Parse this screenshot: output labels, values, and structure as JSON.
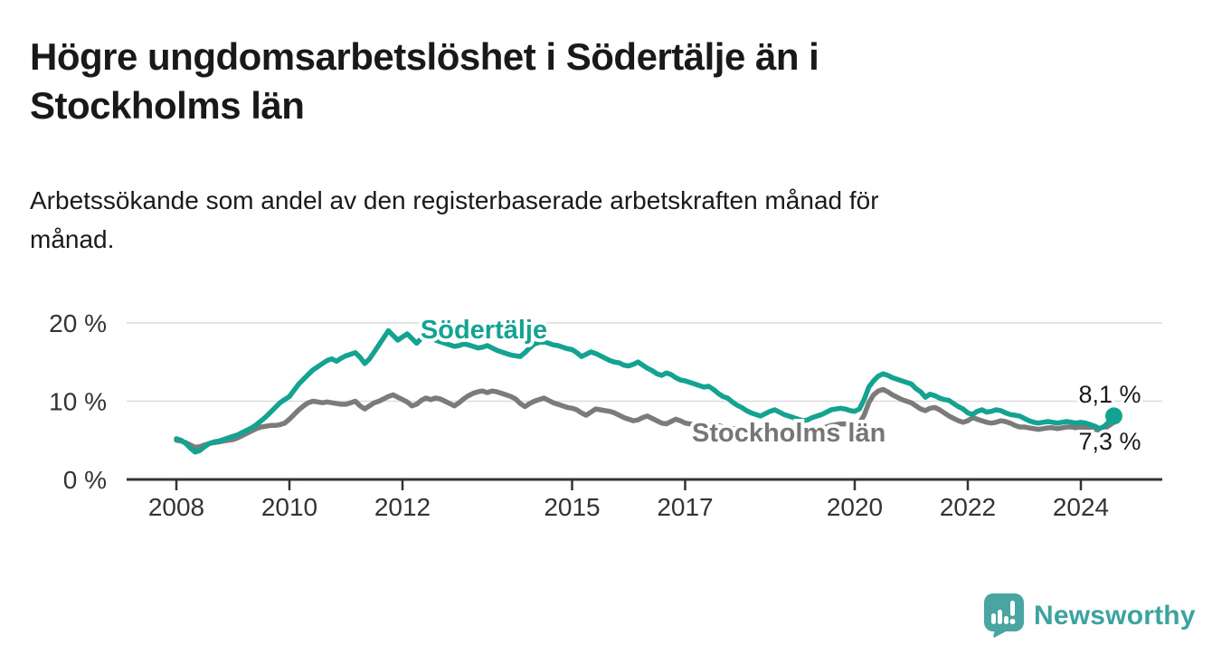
{
  "title": {
    "line1": "Högre ungdomsarbetslöshet i Södertälje än i",
    "line2": "Stockholms län"
  },
  "subtitle": {
    "line1": "Arbetssökande som andel av den registerbaserade arbetskraften månad för",
    "line2": "månad."
  },
  "chart_data": {
    "type": "line",
    "x_start_year": 2008,
    "x_step_months": 1,
    "x_end_label": "aug 2024",
    "ylim": [
      0,
      21.5
    ],
    "grid": "horizontal-only",
    "y_ticks": [
      {
        "value": 0,
        "label": "0 %"
      },
      {
        "value": 10,
        "label": "10 %"
      },
      {
        "value": 20,
        "label": "20 %"
      }
    ],
    "x_ticks": [
      {
        "year": 2008,
        "label": "2008"
      },
      {
        "year": 2010,
        "label": "2010"
      },
      {
        "year": 2012,
        "label": "2012"
      },
      {
        "year": 2015,
        "label": "2015"
      },
      {
        "year": 2017,
        "label": "2017"
      },
      {
        "year": 2020,
        "label": "2020"
      },
      {
        "year": 2022,
        "label": "2022"
      },
      {
        "year": 2024,
        "label": "2024"
      }
    ],
    "series": [
      {
        "name": "Stockholms län",
        "color": "#7B7B7B",
        "end_label": "7,3 %",
        "end_value": 7.3,
        "end_dot": false,
        "values": [
          5.0,
          4.9,
          4.7,
          4.4,
          4.1,
          4.2,
          4.4,
          4.6,
          4.7,
          4.8,
          4.9,
          5.0,
          5.1,
          5.3,
          5.6,
          5.9,
          6.2,
          6.5,
          6.7,
          6.8,
          6.9,
          6.9,
          7.0,
          7.2,
          7.7,
          8.3,
          8.9,
          9.4,
          9.8,
          10.0,
          9.9,
          9.8,
          9.9,
          9.8,
          9.7,
          9.6,
          9.6,
          9.8,
          10.0,
          9.4,
          9.0,
          9.4,
          9.8,
          10.0,
          10.3,
          10.6,
          10.8,
          10.5,
          10.2,
          9.9,
          9.4,
          9.6,
          10.1,
          10.4,
          10.2,
          10.4,
          10.3,
          10.0,
          9.7,
          9.4,
          9.8,
          10.3,
          10.7,
          11.0,
          11.2,
          11.3,
          11.1,
          11.3,
          11.2,
          11.0,
          10.8,
          10.6,
          10.3,
          9.7,
          9.3,
          9.7,
          10.0,
          10.2,
          10.4,
          10.1,
          9.8,
          9.6,
          9.4,
          9.2,
          9.1,
          8.9,
          8.5,
          8.2,
          8.6,
          9.0,
          8.9,
          8.8,
          8.7,
          8.5,
          8.2,
          7.9,
          7.7,
          7.5,
          7.6,
          7.9,
          8.1,
          7.8,
          7.5,
          7.2,
          7.1,
          7.4,
          7.7,
          7.5,
          7.2,
          7.1,
          7.0,
          6.9,
          6.9,
          7.0,
          7.1,
          6.9,
          6.7,
          6.6,
          6.5,
          6.5,
          6.4,
          6.3,
          6.2,
          6.1,
          6.0,
          6.2,
          6.4,
          6.5,
          6.4,
          6.2,
          6.1,
          6.0,
          6.0,
          5.9,
          6.0,
          6.2,
          6.3,
          6.5,
          6.7,
          6.9,
          7.0,
          7.1,
          7.1,
          7.0,
          7.0,
          7.2,
          8.2,
          9.8,
          10.8,
          11.3,
          11.5,
          11.2,
          10.8,
          10.5,
          10.2,
          10.0,
          9.8,
          9.4,
          9.0,
          8.8,
          9.1,
          9.2,
          8.9,
          8.5,
          8.1,
          7.8,
          7.5,
          7.3,
          7.5,
          7.9,
          7.7,
          7.5,
          7.3,
          7.2,
          7.3,
          7.5,
          7.4,
          7.2,
          6.9,
          6.7,
          6.7,
          6.6,
          6.5,
          6.4,
          6.5,
          6.6,
          6.6,
          6.5,
          6.6,
          6.7,
          6.7,
          6.6,
          6.7,
          6.6,
          6.5,
          6.4,
          6.3,
          6.5,
          6.9,
          7.3
        ]
      },
      {
        "name": "Södertälje",
        "color": "#14A291",
        "end_label": "8,1 %",
        "end_value": 8.1,
        "end_dot": true,
        "values": [
          5.2,
          5.0,
          4.6,
          4.0,
          3.5,
          3.7,
          4.2,
          4.6,
          4.8,
          4.9,
          5.1,
          5.3,
          5.5,
          5.7,
          6.0,
          6.3,
          6.6,
          7.0,
          7.5,
          8.0,
          8.6,
          9.2,
          9.8,
          10.2,
          10.6,
          11.4,
          12.2,
          12.8,
          13.4,
          14.0,
          14.4,
          14.8,
          15.2,
          15.4,
          15.1,
          15.5,
          15.8,
          16.0,
          16.2,
          15.6,
          14.8,
          15.4,
          16.3,
          17.2,
          18.1,
          19.0,
          18.4,
          17.8,
          18.2,
          18.6,
          18.0,
          17.4,
          18.0,
          18.5,
          18.1,
          17.8,
          17.6,
          17.4,
          17.2,
          17.0,
          17.1,
          17.3,
          17.2,
          17.0,
          16.8,
          16.9,
          17.1,
          16.8,
          16.5,
          16.3,
          16.1,
          15.9,
          15.8,
          15.7,
          16.2,
          16.8,
          17.3,
          17.5,
          17.6,
          17.4,
          17.2,
          17.1,
          16.9,
          16.7,
          16.6,
          16.2,
          15.7,
          16.0,
          16.3,
          16.1,
          15.8,
          15.5,
          15.2,
          15.0,
          14.9,
          14.6,
          14.5,
          14.7,
          15.0,
          14.6,
          14.2,
          13.9,
          13.5,
          13.3,
          13.6,
          13.4,
          13.0,
          12.7,
          12.6,
          12.4,
          12.2,
          12.0,
          11.8,
          11.9,
          11.5,
          11.0,
          10.6,
          10.4,
          9.9,
          9.5,
          9.2,
          8.8,
          8.5,
          8.3,
          8.1,
          8.4,
          8.7,
          8.9,
          8.6,
          8.3,
          8.1,
          7.9,
          7.7,
          7.5,
          7.6,
          7.9,
          8.1,
          8.3,
          8.6,
          8.9,
          9.0,
          9.1,
          9.0,
          8.8,
          8.7,
          9.0,
          10.2,
          11.8,
          12.6,
          13.2,
          13.5,
          13.3,
          13.0,
          12.8,
          12.6,
          12.4,
          12.2,
          11.6,
          11.2,
          10.5,
          10.9,
          10.7,
          10.4,
          10.2,
          10.1,
          9.7,
          9.3,
          9.0,
          8.5,
          8.3,
          8.7,
          8.9,
          8.6,
          8.7,
          8.9,
          8.8,
          8.5,
          8.3,
          8.2,
          8.1,
          7.8,
          7.5,
          7.3,
          7.2,
          7.3,
          7.4,
          7.3,
          7.2,
          7.3,
          7.4,
          7.3,
          7.2,
          7.3,
          7.2,
          7.0,
          6.8,
          6.5,
          6.8,
          7.4,
          8.1
        ]
      }
    ]
  },
  "footer": {
    "brand": "Newsworthy",
    "logo_icon": "bar-chart-speech-bubble",
    "logo_color": "#48A5A2"
  },
  "colors": {
    "sodertalje_line": "#14A291",
    "stockholm_line": "#7B7B7B",
    "gridline": "#dcdcdc",
    "axis": "#333333",
    "text": "#191919"
  }
}
